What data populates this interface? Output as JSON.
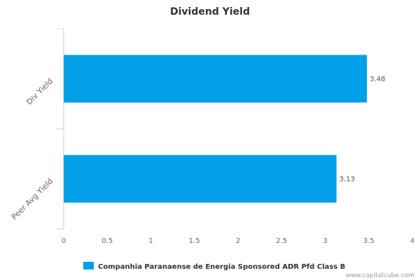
{
  "chart_data": {
    "type": "bar",
    "orientation": "horizontal",
    "title": "Dividend Yield",
    "categories": [
      "Div Yield",
      "Peer Avg Yield"
    ],
    "series": [
      {
        "name": "Companhia Paranaense de Energia Sponsored ADR Pfd Class B",
        "color": "#009fe8",
        "values": [
          3.48,
          3.13
        ],
        "labels": [
          "3.48",
          "3.13"
        ]
      }
    ],
    "xlim": [
      0,
      4
    ],
    "xticks": [
      0,
      0.5,
      1,
      1.5,
      2,
      2.5,
      3,
      3.5,
      4
    ],
    "xtick_labels": [
      "0",
      "0.5",
      "1",
      "1.5",
      "2",
      "2.5",
      "3",
      "3.5",
      "4"
    ],
    "xlabel": "",
    "ylabel": "",
    "grid": false,
    "legend_position": "bottom"
  },
  "credit": "www.capitalcube.com",
  "colors": {
    "bar": "#009fe8",
    "axis": "#cccccc"
  }
}
